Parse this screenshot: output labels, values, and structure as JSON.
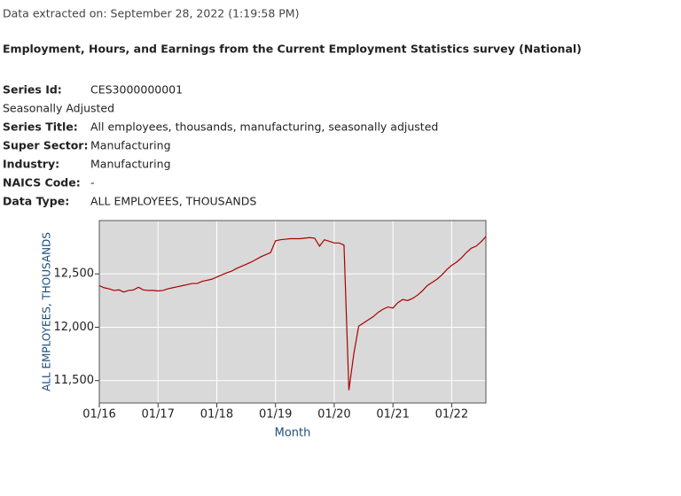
{
  "header": {
    "extracted": "Data extracted on: September 28, 2022 (1:19:58 PM)",
    "title": "Employment, Hours, and Earnings from the Current Employment Statistics survey (National)"
  },
  "info": [
    {
      "label": "Series Id:",
      "value": "CES3000000001"
    },
    {
      "text": "Seasonally Adjusted"
    },
    {
      "label": "Series Title:",
      "value": "All employees, thousands, manufacturing, seasonally adjusted"
    },
    {
      "label": "Super Sector:",
      "value": "Manufacturing"
    },
    {
      "label": "Industry:",
      "value": "Manufacturing"
    },
    {
      "label": "NAICS Code:",
      "value": "-"
    },
    {
      "label": "Data Type:",
      "value": "ALL EMPLOYEES, THOUSANDS"
    }
  ],
  "chart_data": {
    "type": "line",
    "xlabel": "Month",
    "ylabel": "ALL EMPLOYEES, THOUSANDS",
    "color": "#aa0000",
    "grid": true,
    "x": [
      "01/16",
      "02/16",
      "03/16",
      "04/16",
      "05/16",
      "06/16",
      "07/16",
      "08/16",
      "09/16",
      "10/16",
      "11/16",
      "12/16",
      "01/17",
      "02/17",
      "03/17",
      "04/17",
      "05/17",
      "06/17",
      "07/17",
      "08/17",
      "09/17",
      "10/17",
      "11/17",
      "12/17",
      "01/18",
      "02/18",
      "03/18",
      "04/18",
      "05/18",
      "06/18",
      "07/18",
      "08/18",
      "09/18",
      "10/18",
      "11/18",
      "12/18",
      "01/19",
      "02/19",
      "03/19",
      "04/19",
      "05/19",
      "06/19",
      "07/19",
      "08/19",
      "09/19",
      "10/19",
      "11/19",
      "12/19",
      "01/20",
      "02/20",
      "03/20",
      "04/20",
      "05/20",
      "06/20",
      "07/20",
      "08/20",
      "09/20",
      "10/20",
      "11/20",
      "12/20",
      "01/21",
      "02/21",
      "03/21",
      "04/21",
      "05/21",
      "06/21",
      "07/21",
      "08/21",
      "09/21",
      "10/21",
      "11/21",
      "12/21",
      "01/22",
      "02/22",
      "03/22",
      "04/22",
      "05/22",
      "06/22",
      "07/22",
      "08/22"
    ],
    "values": [
      12390,
      12370,
      12360,
      12345,
      12350,
      12330,
      12345,
      12350,
      12375,
      12350,
      12345,
      12345,
      12340,
      12345,
      12360,
      12370,
      12380,
      12390,
      12400,
      12410,
      12410,
      12430,
      12440,
      12450,
      12470,
      12490,
      12510,
      12525,
      12550,
      12570,
      12590,
      12610,
      12635,
      12660,
      12680,
      12700,
      12810,
      12820,
      12825,
      12830,
      12830,
      12830,
      12835,
      12840,
      12835,
      12760,
      12820,
      12805,
      12790,
      12790,
      12770,
      11410,
      11750,
      12010,
      12040,
      12070,
      12100,
      12140,
      12170,
      12190,
      12180,
      12230,
      12260,
      12250,
      12270,
      12300,
      12340,
      12390,
      12420,
      12450,
      12490,
      12540,
      12580,
      12610,
      12650,
      12700,
      12740,
      12760,
      12800,
      12850
    ],
    "xticks": [
      "01/16",
      "01/17",
      "01/18",
      "01/19",
      "01/20",
      "01/21",
      "01/22"
    ],
    "ylim": [
      11290,
      13000
    ],
    "yticks": [
      {
        "value": 11500,
        "label": "11,500"
      },
      {
        "value": 12000,
        "label": "12,000"
      },
      {
        "value": 12500,
        "label": "12,500"
      }
    ]
  }
}
